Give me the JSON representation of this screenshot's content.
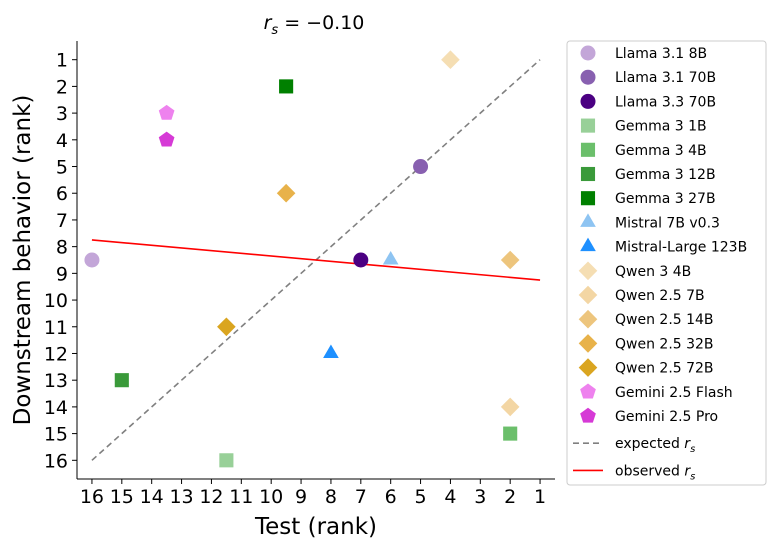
{
  "chart_data": {
    "type": "scatter",
    "title_prefix": "r",
    "title_subscript": "s",
    "title_suffix": " = −0.10",
    "xlabel": "Test (rank)",
    "ylabel": "Downstream behavior (rank)",
    "xlim": [
      16.5,
      0.5
    ],
    "ylim": [
      16.7,
      0.3
    ],
    "x_ticks": [
      16,
      15,
      14,
      13,
      12,
      11,
      10,
      9,
      8,
      7,
      6,
      5,
      4,
      3,
      2,
      1
    ],
    "y_ticks": [
      1,
      2,
      3,
      4,
      5,
      6,
      7,
      8,
      9,
      10,
      11,
      12,
      13,
      14,
      15,
      16
    ],
    "series": [
      {
        "name": "Llama 3.1 8B",
        "marker": "circle",
        "color": "#c3a6d8",
        "points": [
          [
            16,
            8.5
          ]
        ]
      },
      {
        "name": "Llama 3.1 70B",
        "marker": "circle",
        "color": "#8860b0",
        "points": [
          [
            5,
            5
          ]
        ]
      },
      {
        "name": "Llama 3.3 70B",
        "marker": "circle",
        "color": "#4b0082",
        "points": [
          [
            7,
            8.5
          ]
        ]
      },
      {
        "name": "Gemma 3 1B",
        "marker": "square",
        "color": "#98d098",
        "points": [
          [
            11.5,
            16
          ]
        ]
      },
      {
        "name": "Gemma 3 4B",
        "marker": "square",
        "color": "#6bbf6b",
        "points": [
          [
            2,
            15
          ]
        ]
      },
      {
        "name": "Gemma 3 12B",
        "marker": "square",
        "color": "#3a9a3a",
        "points": [
          [
            15,
            13
          ]
        ]
      },
      {
        "name": "Gemma 3 27B",
        "marker": "square",
        "color": "#008000",
        "points": [
          [
            9.5,
            2
          ]
        ]
      },
      {
        "name": "Mistral 7B v0.3",
        "marker": "triangle",
        "color": "#8ec4f2",
        "points": [
          [
            6,
            8.5
          ]
        ]
      },
      {
        "name": "Mistral-Large 123B",
        "marker": "triangle",
        "color": "#1e90ff",
        "points": [
          [
            8,
            12
          ]
        ]
      },
      {
        "name": "Qwen 3 4B",
        "marker": "diamond",
        "color": "#f5deb3",
        "points": [
          [
            4,
            1
          ]
        ]
      },
      {
        "name": "Qwen 2.5 7B",
        "marker": "diamond",
        "color": "#f3d6a4",
        "points": [
          [
            2,
            14
          ]
        ]
      },
      {
        "name": "Qwen 2.5 14B",
        "marker": "diamond",
        "color": "#edc57d",
        "points": [
          [
            2,
            8.5
          ]
        ]
      },
      {
        "name": "Qwen 2.5 32B",
        "marker": "diamond",
        "color": "#e8b24a",
        "points": [
          [
            9.5,
            6
          ]
        ]
      },
      {
        "name": "Qwen 2.5 72B",
        "marker": "diamond",
        "color": "#daa520",
        "points": [
          [
            11.5,
            11
          ]
        ]
      },
      {
        "name": "Gemini 2.5 Flash",
        "marker": "pentagon",
        "color": "#ee82ee",
        "points": [
          [
            13.5,
            3
          ]
        ]
      },
      {
        "name": "Gemini 2.5 Pro",
        "marker": "pentagon",
        "color": "#d63ad6",
        "points": [
          [
            13.5,
            4
          ]
        ]
      }
    ],
    "lines": [
      {
        "name": "expected",
        "subscript": "s",
        "prefix": "r",
        "style": "dashed",
        "color": "#808080",
        "from": [
          16,
          16
        ],
        "to": [
          1,
          1
        ]
      },
      {
        "name": "observed",
        "subscript": "s",
        "prefix": "r",
        "style": "solid",
        "color": "#ff0000",
        "from": [
          16,
          7.75
        ],
        "to": [
          1,
          9.25
        ]
      }
    ],
    "legend_position": "outside-right"
  }
}
